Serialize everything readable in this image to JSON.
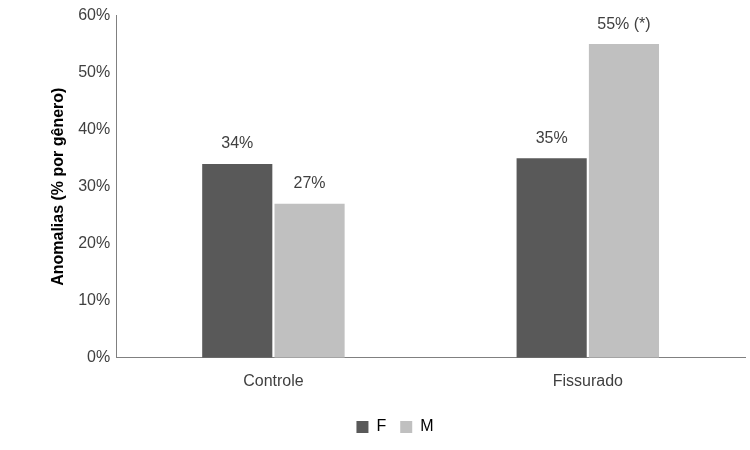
{
  "chart_data": {
    "type": "bar",
    "y_label": "Anomalias (% por gênero)",
    "categories": [
      "Controle",
      "Fissurado"
    ],
    "series": [
      {
        "name": "F",
        "color": "#595959",
        "values": [
          34,
          35
        ],
        "value_labels": [
          "34%",
          "35%"
        ]
      },
      {
        "name": "M",
        "color": "#c0c0c0",
        "values": [
          27,
          55
        ],
        "value_labels": [
          "27%",
          "55% (*)"
        ]
      }
    ],
    "ylim": [
      0,
      60
    ],
    "yticks": [
      {
        "value": 0,
        "label": "0%"
      },
      {
        "value": 10,
        "label": "10%"
      },
      {
        "value": 20,
        "label": "20%"
      },
      {
        "value": 30,
        "label": "30%"
      },
      {
        "value": 40,
        "label": "40%"
      },
      {
        "value": 50,
        "label": "50%"
      },
      {
        "value": 60,
        "label": "60%"
      }
    ],
    "grid": false,
    "legend": "bottom",
    "data_labels": true
  }
}
